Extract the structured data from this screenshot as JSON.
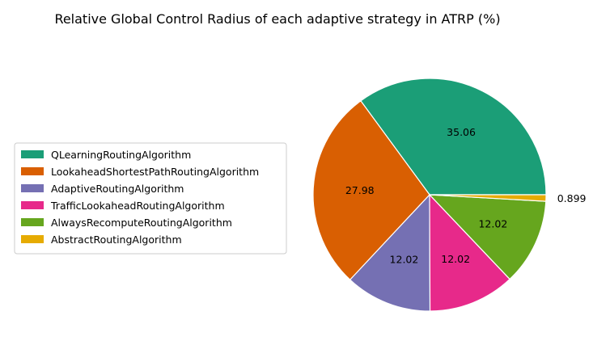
{
  "chart_data": {
    "type": "pie",
    "title": "Relative Global Control Radius of each adaptive strategy in ATRP (%)",
    "slices": [
      {
        "label": "QLearningRoutingAlgorithm",
        "value": 35.06,
        "display": "35.06",
        "color": "#1b9e77"
      },
      {
        "label": "LookaheadShortestPathRoutingAlgorithm",
        "value": 27.98,
        "display": "27.98",
        "color": "#d95f02"
      },
      {
        "label": "AdaptiveRoutingAlgorithm",
        "value": 12.02,
        "display": "12.02",
        "color": "#7570b3"
      },
      {
        "label": "TrafficLookaheadRoutingAlgorithm",
        "value": 12.02,
        "display": "12.02",
        "color": "#e7298a"
      },
      {
        "label": "AlwaysRecomputeRoutingAlgorithm",
        "value": 12.02,
        "display": "12.02",
        "color": "#66a61e"
      },
      {
        "label": "AbstractRoutingAlgorithm",
        "value": 0.899,
        "display": "0.899",
        "color": "#e6ab02"
      }
    ],
    "start_angle_deg": 0,
    "direction": "counterclockwise",
    "legend_position": "center-left"
  }
}
